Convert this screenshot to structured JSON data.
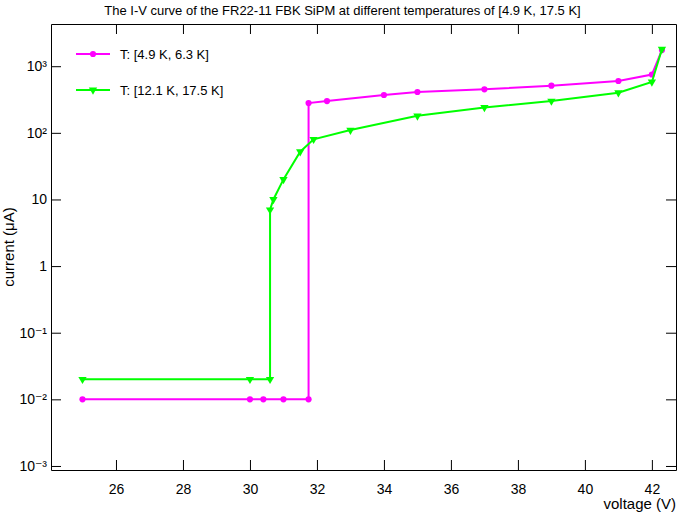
{
  "chart_data": {
    "type": "line",
    "title": "The I-V curve of the FR22-11 FBK SiPM at different temperatures of [4.9 K, 17.5 K]",
    "x_label": "voltage (V)",
    "y_label": "current (μA)",
    "log": "y",
    "legend": "upper-left",
    "grid": false,
    "xlim": [
      24.06,
      42.72
    ],
    "ylim": [
      0.00087,
      4300
    ],
    "xticks": [
      26,
      28,
      30,
      32,
      34,
      36,
      38,
      40,
      42
    ],
    "yticks": [
      {
        "value": 0.001,
        "label": "10⁻³"
      },
      {
        "value": 0.01,
        "label": "10⁻²"
      },
      {
        "value": 0.1,
        "label": "10⁻¹"
      },
      1,
      10,
      {
        "value": 100,
        "label": "10²"
      },
      {
        "value": 1000,
        "label": "10³"
      }
    ],
    "series": [
      {
        "name": "T: [4.9 K, 6.3 K]",
        "color": "#ff00ff",
        "marker": "circle",
        "line_style": "solid",
        "x": [
          25,
          30,
          30.4,
          31,
          31.75,
          31.75,
          32.3,
          34,
          35,
          37,
          39,
          41,
          42,
          42.3
        ],
        "values": [
          0.01,
          0.01,
          0.01,
          0.01,
          0.01,
          280,
          300,
          370,
          410,
          450,
          510,
          600,
          750,
          1750
        ]
      },
      {
        "name": "T: [12.1 K, 17.5 K]",
        "color": "#00ff00",
        "marker": "triangle-down",
        "line_style": "solid",
        "x": [
          25,
          30,
          30.6,
          30.6,
          30.7,
          31,
          31.5,
          31.9,
          33,
          35,
          37,
          39,
          41,
          42,
          42.3
        ],
        "values": [
          0.02,
          0.02,
          0.02,
          7,
          10,
          20,
          52,
          80,
          110,
          180,
          240,
          300,
          400,
          580,
          1800
        ]
      }
    ]
  }
}
